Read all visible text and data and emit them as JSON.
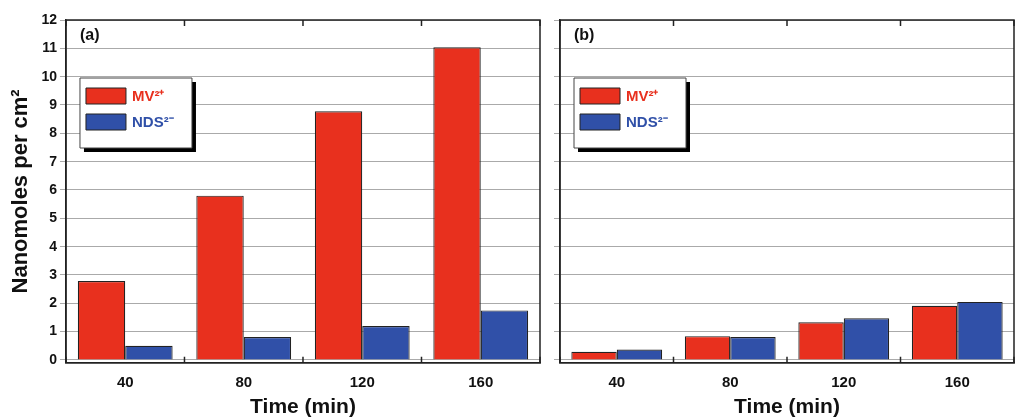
{
  "chart_data": [
    {
      "type": "bar",
      "title": "(a)",
      "xlabel": "Time (min)",
      "ylabel": "Nanomoles per cm²",
      "categories": [
        "40",
        "80",
        "120",
        "160"
      ],
      "series": [
        {
          "name": "MV²⁺",
          "color": "#e8301e",
          "values": [
            2.79,
            5.8,
            8.78,
            11.04
          ]
        },
        {
          "name": "NDS²⁻",
          "color": "#3050a8",
          "values": [
            0.5,
            0.81,
            1.2,
            1.75
          ]
        }
      ],
      "ylim": [
        -0.1,
        12
      ],
      "yticks": [
        0,
        1,
        2,
        3,
        4,
        5,
        6,
        7,
        8,
        9,
        10,
        11,
        12
      ],
      "grid": "y",
      "legend": "top left"
    },
    {
      "type": "bar",
      "title": "(b)",
      "xlabel": "Time (min)",
      "categories": [
        "40",
        "80",
        "120",
        "160"
      ],
      "series": [
        {
          "name": "MV²⁺",
          "color": "#e8301e",
          "values": [
            0.29,
            0.84,
            1.33,
            1.91
          ]
        },
        {
          "name": "NDS²⁻",
          "color": "#3050a8",
          "values": [
            0.37,
            0.81,
            1.47,
            2.05
          ]
        }
      ],
      "ylim": [
        -0.1,
        12
      ],
      "yticks": [
        0,
        1,
        2,
        3,
        4,
        5,
        6,
        7,
        8,
        9,
        10,
        11,
        12
      ],
      "grid": "y",
      "legend": "top left",
      "tick_labels": "x"
    }
  ]
}
